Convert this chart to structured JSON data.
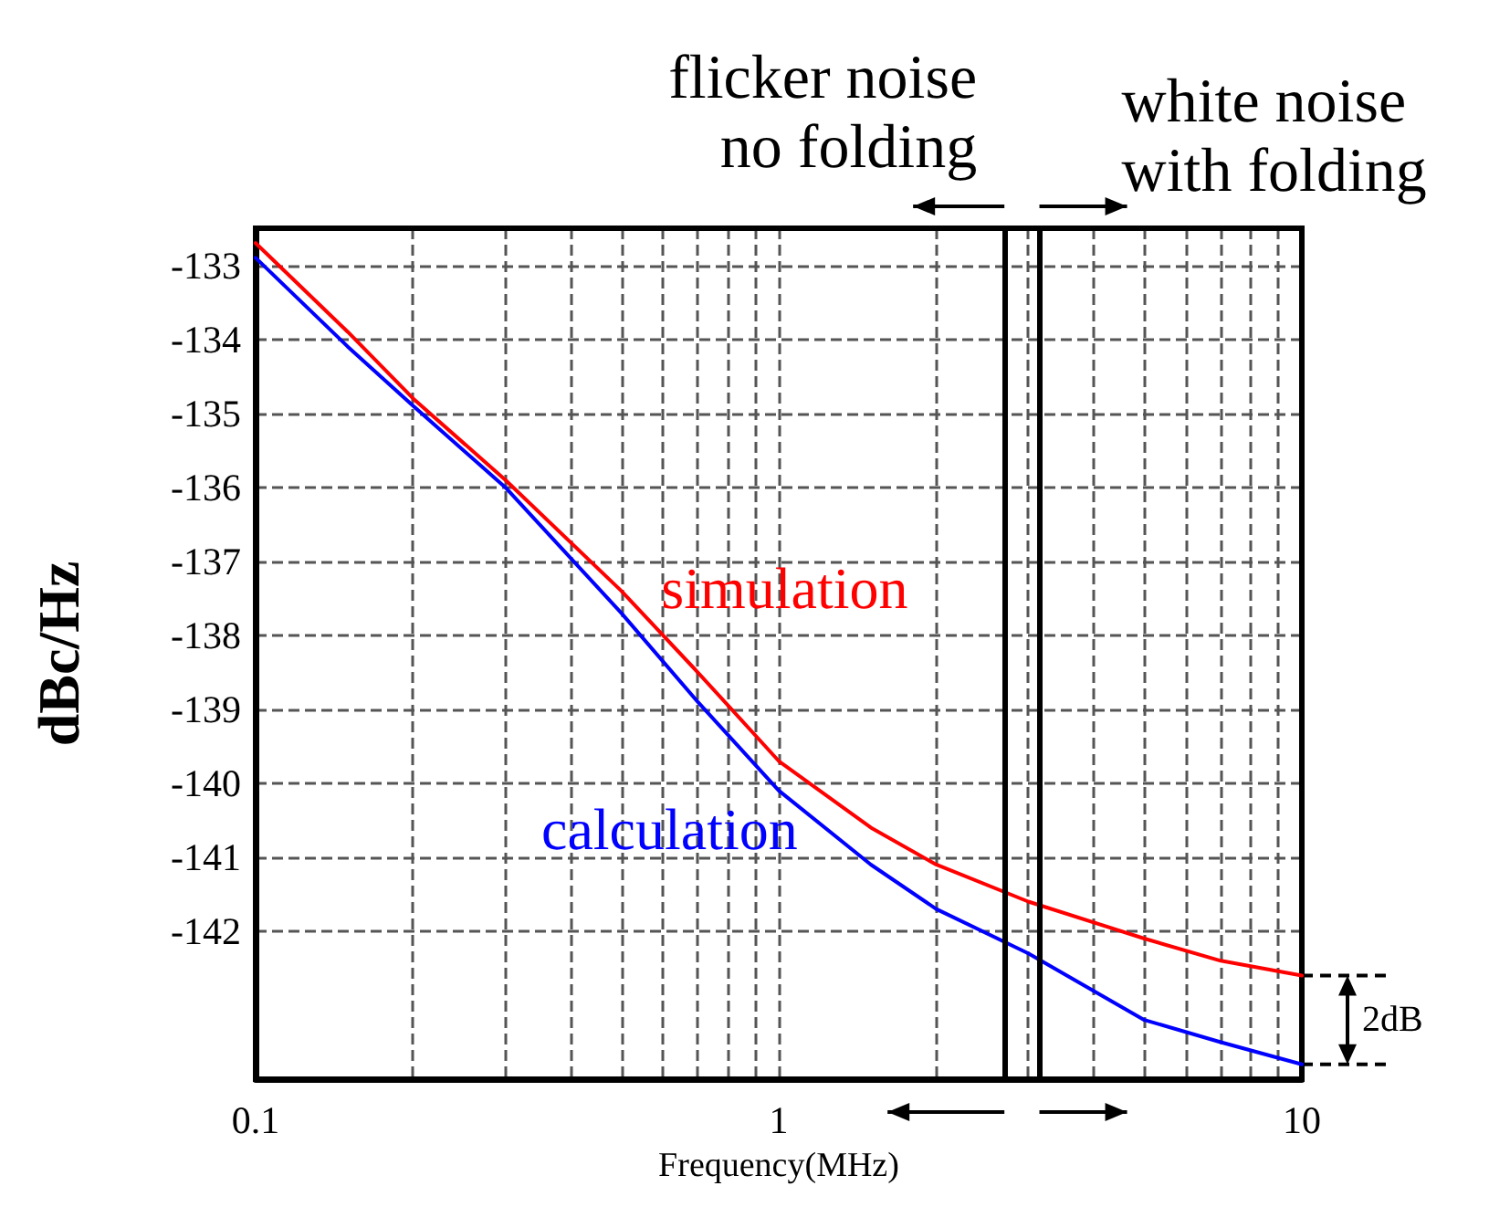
{
  "chart_data": {
    "type": "line",
    "xlabel": "Frequency(MHz)",
    "ylabel": "dBc/Hz",
    "log": "x",
    "x": [
      0.1,
      0.15,
      0.2,
      0.3,
      0.5,
      0.7,
      1,
      1.5,
      2,
      3,
      5,
      7,
      10
    ],
    "series": [
      {
        "name": "simulation",
        "color": "#ff0000",
        "values": [
          -132.7,
          -133.9,
          -134.8,
          -135.9,
          -137.4,
          -138.5,
          -139.7,
          -140.6,
          -141.1,
          -141.6,
          -142.1,
          -142.4,
          -142.6
        ]
      },
      {
        "name": "calculation",
        "color": "#0000ff",
        "values": [
          -132.9,
          -134.1,
          -134.9,
          -136.0,
          -137.7,
          -138.9,
          -140.1,
          -141.1,
          -141.7,
          -142.3,
          -143.2,
          -143.5,
          -143.8
        ]
      }
    ],
    "xlim": [
      0.1,
      10
    ],
    "ylim": [
      -144,
      -132.5
    ],
    "xticks": [
      0.1,
      {
        "value": 0.2,
        "label": null
      },
      {
        "value": 0.3,
        "label": null
      },
      {
        "value": 0.4,
        "label": null
      },
      {
        "value": 0.5,
        "label": null
      },
      {
        "value": 0.6,
        "label": null
      },
      {
        "value": 0.7,
        "label": null
      },
      {
        "value": 0.8,
        "label": null
      },
      {
        "value": 0.9,
        "label": null
      },
      1,
      {
        "value": 2,
        "label": null
      },
      {
        "value": 3,
        "label": null
      },
      {
        "value": 4,
        "label": null
      },
      {
        "value": 5,
        "label": null
      },
      {
        "value": 6,
        "label": null
      },
      {
        "value": 7,
        "label": null
      },
      {
        "value": 8,
        "label": null
      },
      {
        "value": 9,
        "label": null
      },
      10
    ],
    "yticks": [
      -133,
      -134,
      -135,
      -136,
      -137,
      -138,
      -139,
      -140,
      -141,
      -142
    ],
    "ref_lines": [
      {
        "axis": "x",
        "value": 2.7,
        "color": "#000000"
      },
      {
        "axis": "x",
        "value": 3.15,
        "color": "#000000"
      }
    ],
    "annotations": [
      "flicker noise\nno folding",
      "white noise\nwith folding",
      "2dB"
    ],
    "grid": true,
    "line_style": "solid",
    "marker": "none"
  }
}
